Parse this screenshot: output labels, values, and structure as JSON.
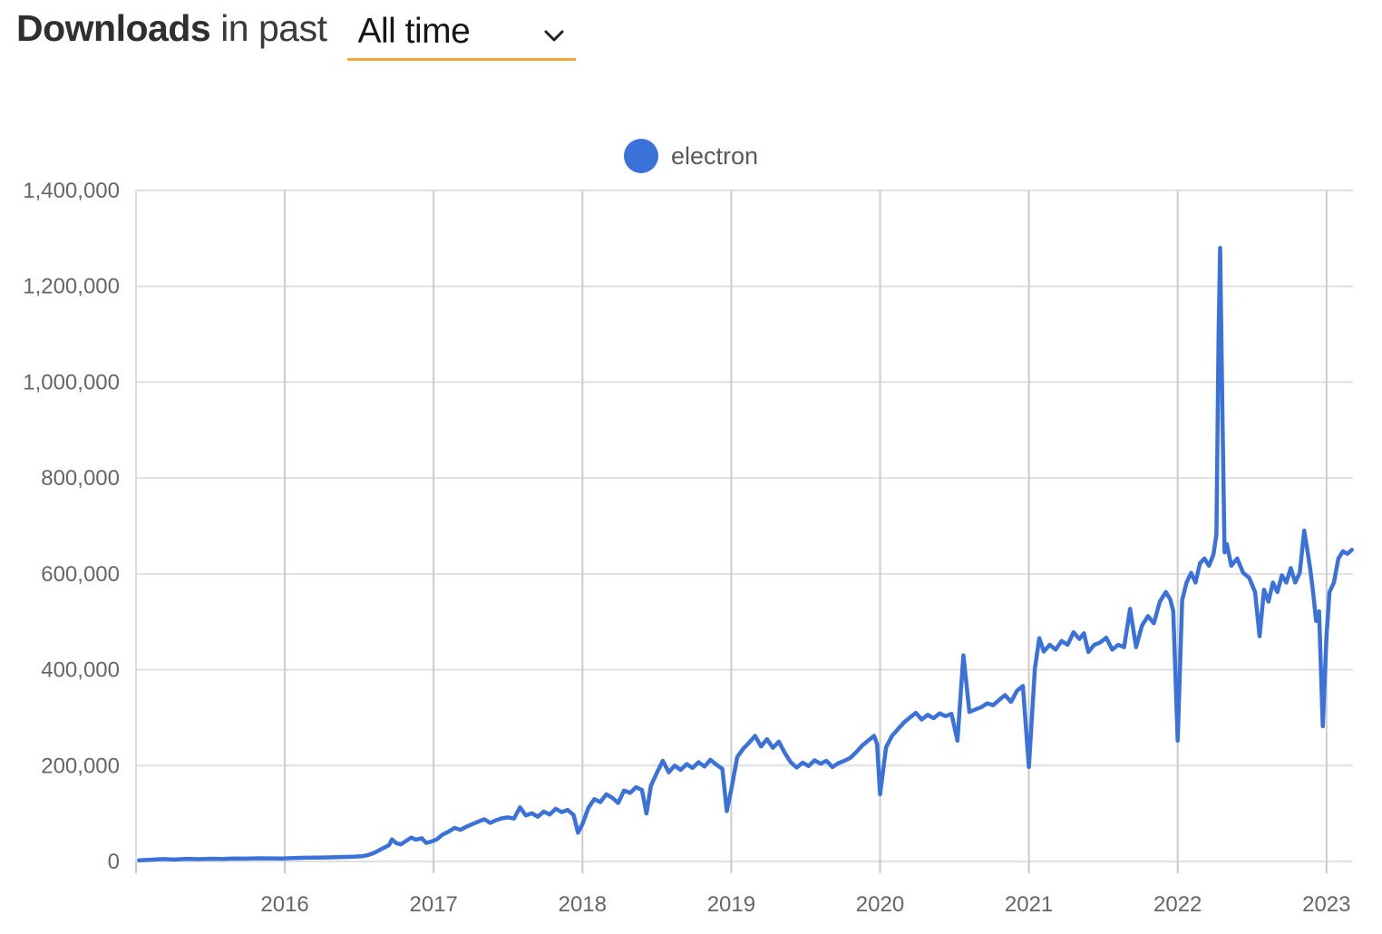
{
  "header": {
    "title_bold": "Downloads",
    "title_rest": "in past",
    "range_selected": "All time",
    "accent_underline_color": "#f3a536"
  },
  "legend": {
    "items": [
      {
        "label": "electron",
        "color": "#3b72d9"
      }
    ]
  },
  "chart_data": {
    "type": "line",
    "title": "Downloads in past All time",
    "xlabel": "",
    "ylabel": "",
    "grid": true,
    "legend_position": "top-center",
    "xlim": [
      2015.0,
      2023.25
    ],
    "ylim": [
      0,
      1400000
    ],
    "y_axis": {
      "ticks": [
        {
          "value": 0,
          "label": "0"
        },
        {
          "value": 200000,
          "label": "200,000"
        },
        {
          "value": 400000,
          "label": "400,000"
        },
        {
          "value": 600000,
          "label": "600,000"
        },
        {
          "value": 800000,
          "label": "800,000"
        },
        {
          "value": 1000000,
          "label": "1,000,000"
        },
        {
          "value": 1200000,
          "label": "1,200,000"
        },
        {
          "value": 1400000,
          "label": "1,400,000"
        }
      ]
    },
    "x_axis": {
      "ticks": [
        {
          "value": 2016,
          "label": "2016"
        },
        {
          "value": 2017,
          "label": "2017"
        },
        {
          "value": 2018,
          "label": "2018"
        },
        {
          "value": 2019,
          "label": "2019"
        },
        {
          "value": 2020,
          "label": "2020"
        },
        {
          "value": 2021,
          "label": "2021"
        },
        {
          "value": 2022,
          "label": "2022"
        },
        {
          "value": 2023,
          "label": "2023"
        }
      ]
    },
    "series": [
      {
        "name": "electron",
        "color": "#3b72d9",
        "points": [
          [
            2015.02,
            2500
          ],
          [
            2015.1,
            3500
          ],
          [
            2015.18,
            5000
          ],
          [
            2015.26,
            4000
          ],
          [
            2015.34,
            5500
          ],
          [
            2015.42,
            4800
          ],
          [
            2015.5,
            5600
          ],
          [
            2015.58,
            5200
          ],
          [
            2015.66,
            6200
          ],
          [
            2015.74,
            5800
          ],
          [
            2015.82,
            6600
          ],
          [
            2015.9,
            6400
          ],
          [
            2015.98,
            6000
          ],
          [
            2016.06,
            7200
          ],
          [
            2016.14,
            7800
          ],
          [
            2016.22,
            8200
          ],
          [
            2016.3,
            8600
          ],
          [
            2016.38,
            9200
          ],
          [
            2016.46,
            9800
          ],
          [
            2016.52,
            11000
          ],
          [
            2016.56,
            13500
          ],
          [
            2016.6,
            18000
          ],
          [
            2016.65,
            26000
          ],
          [
            2016.7,
            34000
          ],
          [
            2016.72,
            46000
          ],
          [
            2016.75,
            38000
          ],
          [
            2016.78,
            35500
          ],
          [
            2016.82,
            44000
          ],
          [
            2016.85,
            50000
          ],
          [
            2016.88,
            45500
          ],
          [
            2016.92,
            48500
          ],
          [
            2016.95,
            38500
          ],
          [
            2016.98,
            41000
          ],
          [
            2017.02,
            46000
          ],
          [
            2017.06,
            56000
          ],
          [
            2017.1,
            62000
          ],
          [
            2017.14,
            70000
          ],
          [
            2017.18,
            66000
          ],
          [
            2017.22,
            72500
          ],
          [
            2017.26,
            78000
          ],
          [
            2017.3,
            83000
          ],
          [
            2017.34,
            88000
          ],
          [
            2017.38,
            80500
          ],
          [
            2017.42,
            86000
          ],
          [
            2017.46,
            90000
          ],
          [
            2017.5,
            92000
          ],
          [
            2017.54,
            89500
          ],
          [
            2017.58,
            113000
          ],
          [
            2017.62,
            96000
          ],
          [
            2017.66,
            100500
          ],
          [
            2017.7,
            93500
          ],
          [
            2017.74,
            104000
          ],
          [
            2017.78,
            98000
          ],
          [
            2017.82,
            110000
          ],
          [
            2017.86,
            103000
          ],
          [
            2017.9,
            107500
          ],
          [
            2017.94,
            97000
          ],
          [
            2017.97,
            60000
          ],
          [
            2018.0,
            78000
          ],
          [
            2018.04,
            112000
          ],
          [
            2018.08,
            130000
          ],
          [
            2018.12,
            124000
          ],
          [
            2018.16,
            140000
          ],
          [
            2018.2,
            133000
          ],
          [
            2018.24,
            122000
          ],
          [
            2018.28,
            148000
          ],
          [
            2018.32,
            143000
          ],
          [
            2018.36,
            155000
          ],
          [
            2018.4,
            149000
          ],
          [
            2018.43,
            100000
          ],
          [
            2018.46,
            158000
          ],
          [
            2018.5,
            185000
          ],
          [
            2018.54,
            210000
          ],
          [
            2018.58,
            186000
          ],
          [
            2018.62,
            200000
          ],
          [
            2018.66,
            191000
          ],
          [
            2018.7,
            203000
          ],
          [
            2018.74,
            195000
          ],
          [
            2018.78,
            207000
          ],
          [
            2018.82,
            198000
          ],
          [
            2018.86,
            212000
          ],
          [
            2018.9,
            202000
          ],
          [
            2018.94,
            193000
          ],
          [
            2018.97,
            105000
          ],
          [
            2019.0,
            150000
          ],
          [
            2019.04,
            218000
          ],
          [
            2019.08,
            235000
          ],
          [
            2019.12,
            248000
          ],
          [
            2019.16,
            262000
          ],
          [
            2019.2,
            240000
          ],
          [
            2019.24,
            255000
          ],
          [
            2019.28,
            237000
          ],
          [
            2019.32,
            250000
          ],
          [
            2019.36,
            226000
          ],
          [
            2019.4,
            207000
          ],
          [
            2019.44,
            196000
          ],
          [
            2019.48,
            206000
          ],
          [
            2019.52,
            199000
          ],
          [
            2019.56,
            211000
          ],
          [
            2019.6,
            204000
          ],
          [
            2019.64,
            210000
          ],
          [
            2019.68,
            197000
          ],
          [
            2019.72,
            205000
          ],
          [
            2019.76,
            210000
          ],
          [
            2019.8,
            216000
          ],
          [
            2019.84,
            228000
          ],
          [
            2019.88,
            242000
          ],
          [
            2019.92,
            252000
          ],
          [
            2019.96,
            262000
          ],
          [
            2019.98,
            245000
          ],
          [
            2020.0,
            140000
          ],
          [
            2020.04,
            238000
          ],
          [
            2020.08,
            262000
          ],
          [
            2020.12,
            276000
          ],
          [
            2020.16,
            290000
          ],
          [
            2020.2,
            300000
          ],
          [
            2020.24,
            310000
          ],
          [
            2020.28,
            296000
          ],
          [
            2020.32,
            306000
          ],
          [
            2020.36,
            299000
          ],
          [
            2020.4,
            309000
          ],
          [
            2020.44,
            303000
          ],
          [
            2020.48,
            308000
          ],
          [
            2020.52,
            252000
          ],
          [
            2020.56,
            430000
          ],
          [
            2020.6,
            312000
          ],
          [
            2020.64,
            317000
          ],
          [
            2020.68,
            322000
          ],
          [
            2020.72,
            330000
          ],
          [
            2020.76,
            326000
          ],
          [
            2020.8,
            337000
          ],
          [
            2020.84,
            347000
          ],
          [
            2020.88,
            333000
          ],
          [
            2020.92,
            356000
          ],
          [
            2020.96,
            366000
          ],
          [
            2021.0,
            197000
          ],
          [
            2021.04,
            402000
          ],
          [
            2021.07,
            466000
          ],
          [
            2021.1,
            438000
          ],
          [
            2021.14,
            452000
          ],
          [
            2021.18,
            442000
          ],
          [
            2021.22,
            460000
          ],
          [
            2021.26,
            452000
          ],
          [
            2021.3,
            478000
          ],
          [
            2021.34,
            464000
          ],
          [
            2021.37,
            476000
          ],
          [
            2021.4,
            437000
          ],
          [
            2021.44,
            452000
          ],
          [
            2021.48,
            457000
          ],
          [
            2021.52,
            467000
          ],
          [
            2021.56,
            442000
          ],
          [
            2021.6,
            452000
          ],
          [
            2021.64,
            447000
          ],
          [
            2021.68,
            527000
          ],
          [
            2021.72,
            447000
          ],
          [
            2021.76,
            492000
          ],
          [
            2021.8,
            512000
          ],
          [
            2021.84,
            497000
          ],
          [
            2021.88,
            542000
          ],
          [
            2021.92,
            562000
          ],
          [
            2021.95,
            547000
          ],
          [
            2021.97,
            522000
          ],
          [
            2022.0,
            252000
          ],
          [
            2022.03,
            545000
          ],
          [
            2022.06,
            582000
          ],
          [
            2022.09,
            602000
          ],
          [
            2022.12,
            582000
          ],
          [
            2022.15,
            622000
          ],
          [
            2022.18,
            632000
          ],
          [
            2022.21,
            617000
          ],
          [
            2022.24,
            640000
          ],
          [
            2022.26,
            682000
          ],
          [
            2022.275,
            1100000
          ],
          [
            2022.285,
            1280000
          ],
          [
            2022.3,
            950000
          ],
          [
            2022.315,
            645000
          ],
          [
            2022.33,
            662000
          ],
          [
            2022.36,
            617000
          ],
          [
            2022.4,
            632000
          ],
          [
            2022.44,
            602000
          ],
          [
            2022.48,
            592000
          ],
          [
            2022.52,
            562000
          ],
          [
            2022.55,
            470000
          ],
          [
            2022.58,
            567000
          ],
          [
            2022.61,
            542000
          ],
          [
            2022.64,
            582000
          ],
          [
            2022.67,
            562000
          ],
          [
            2022.7,
            597000
          ],
          [
            2022.73,
            582000
          ],
          [
            2022.76,
            612000
          ],
          [
            2022.79,
            582000
          ],
          [
            2022.82,
            602000
          ],
          [
            2022.85,
            690000
          ],
          [
            2022.87,
            652000
          ],
          [
            2022.89,
            612000
          ],
          [
            2022.91,
            562000
          ],
          [
            2022.93,
            502000
          ],
          [
            2022.95,
            522000
          ],
          [
            2022.975,
            282000
          ],
          [
            2023.0,
            470000
          ],
          [
            2023.02,
            562000
          ],
          [
            2023.05,
            582000
          ],
          [
            2023.08,
            632000
          ],
          [
            2023.11,
            647000
          ],
          [
            2023.14,
            642000
          ],
          [
            2023.17,
            650000
          ]
        ]
      }
    ]
  }
}
